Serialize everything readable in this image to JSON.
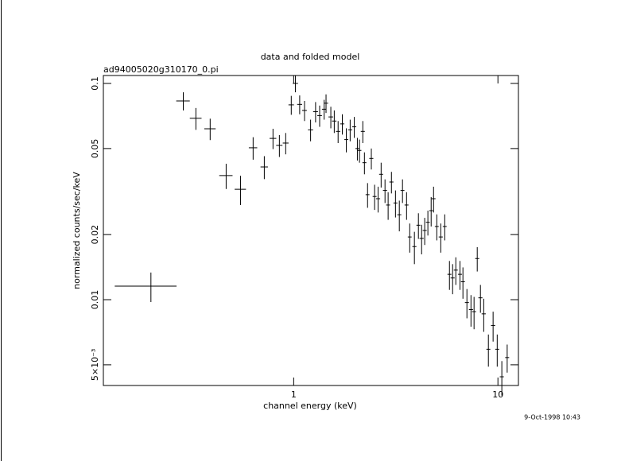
{
  "chart_data": {
    "type": "scatter",
    "title": "data and folded model",
    "subtitle": "ad94005020g310170_0.pi",
    "x_label": "channel energy (keV)",
    "y_label": "normalized counts/sec/keV",
    "annotation": "9-Oct-1998 10:43",
    "xscale": "log",
    "yscale": "log",
    "color": "#000000",
    "xlim": [
      0.117,
      12.6
    ],
    "ylim": [
      0.00401,
      0.1088
    ],
    "xticks": [
      1,
      10
    ],
    "yticks": [
      0.1,
      0.05,
      0.02,
      0.01,
      {
        "value": 0.005,
        "label": "5×10⁻³"
      }
    ],
    "x": [
      0.2,
      0.288,
      0.332,
      0.39,
      0.467,
      0.549,
      0.633,
      0.718,
      0.792,
      0.851,
      0.914,
      0.973,
      1.02,
      1.07,
      1.13,
      1.21,
      1.28,
      1.34,
      1.41,
      1.44,
      1.52,
      1.58,
      1.65,
      1.73,
      1.81,
      1.89,
      1.98,
      2.05,
      2.1,
      2.18,
      2.22,
      2.3,
      2.4,
      2.49,
      2.59,
      2.68,
      2.8,
      2.9,
      3.01,
      3.15,
      3.29,
      3.41,
      3.57,
      3.7,
      3.9,
      4.08,
      4.23,
      4.38,
      4.54,
      4.71,
      4.84,
      5.02,
      5.25,
      5.49,
      5.79,
      6.0,
      6.22,
      6.52,
      6.74,
      7.05,
      7.38,
      7.64,
      7.92,
      8.21,
      8.52,
      8.98,
      9.47,
      9.92,
      10.45,
      11.1
    ],
    "xerr": [
      0.067,
      0.022,
      0.022,
      0.025,
      0.035,
      0.035,
      0.03,
      0.03,
      0.03,
      0.03,
      0.03,
      0.03,
      0.03,
      0.03,
      0.03,
      0.035,
      0.035,
      0.035,
      0.035,
      0.035,
      0.04,
      0.04,
      0.04,
      0.04,
      0.04,
      0.045,
      0.045,
      0.045,
      0.045,
      0.05,
      0.05,
      0.05,
      0.055,
      0.055,
      0.06,
      0.06,
      0.065,
      0.065,
      0.07,
      0.07,
      0.075,
      0.075,
      0.08,
      0.08,
      0.09,
      0.09,
      0.1,
      0.1,
      0.1,
      0.1,
      0.11,
      0.11,
      0.12,
      0.12,
      0.13,
      0.14,
      0.14,
      0.15,
      0.15,
      0.16,
      0.17,
      0.18,
      0.18,
      0.19,
      0.2,
      0.2,
      0.22,
      0.22,
      0.24,
      0.25
    ],
    "values": [
      0.01155,
      0.083,
      0.069,
      0.0617,
      0.0375,
      0.0324,
      0.0504,
      0.0411,
      0.0557,
      0.0517,
      0.053,
      0.0796,
      0.1,
      0.08,
      0.075,
      0.061,
      0.074,
      0.071,
      0.076,
      0.081,
      0.07,
      0.067,
      0.06,
      0.065,
      0.055,
      0.061,
      0.063,
      0.05,
      0.049,
      0.06,
      0.043,
      0.0306,
      0.045,
      0.03,
      0.0293,
      0.038,
      0.032,
      0.0274,
      0.035,
      0.028,
      0.0247,
      0.032,
      0.0274,
      0.0195,
      0.0176,
      0.0221,
      0.0192,
      0.0209,
      0.0228,
      0.0258,
      0.0293,
      0.0218,
      0.0195,
      0.0218,
      0.0131,
      0.0126,
      0.0137,
      0.0131,
      0.0121,
      0.0097,
      0.009,
      0.0088,
      0.0155,
      0.0102,
      0.0086,
      0.0059,
      0.0076,
      0.0059,
      0.0044,
      0.0054
    ],
    "yerr": [
      0.0018,
      0.008,
      0.008,
      0.007,
      0.005,
      0.005,
      0.006,
      0.005,
      0.006,
      0.006,
      0.006,
      0.008,
      0.009,
      0.008,
      0.008,
      0.007,
      0.008,
      0.008,
      0.008,
      0.008,
      0.008,
      0.008,
      0.007,
      0.007,
      0.007,
      0.007,
      0.007,
      0.006,
      0.006,
      0.007,
      0.005,
      0.004,
      0.005,
      0.004,
      0.004,
      0.005,
      0.004,
      0.004,
      0.004,
      0.004,
      0.004,
      0.004,
      0.004,
      0.003,
      0.003,
      0.003,
      0.003,
      0.003,
      0.003,
      0.004,
      0.004,
      0.003,
      0.003,
      0.003,
      0.002,
      0.002,
      0.002,
      0.002,
      0.002,
      0.0015,
      0.0015,
      0.0015,
      0.002,
      0.0015,
      0.0015,
      0.001,
      0.0012,
      0.001,
      0.0008,
      0.0008
    ]
  }
}
